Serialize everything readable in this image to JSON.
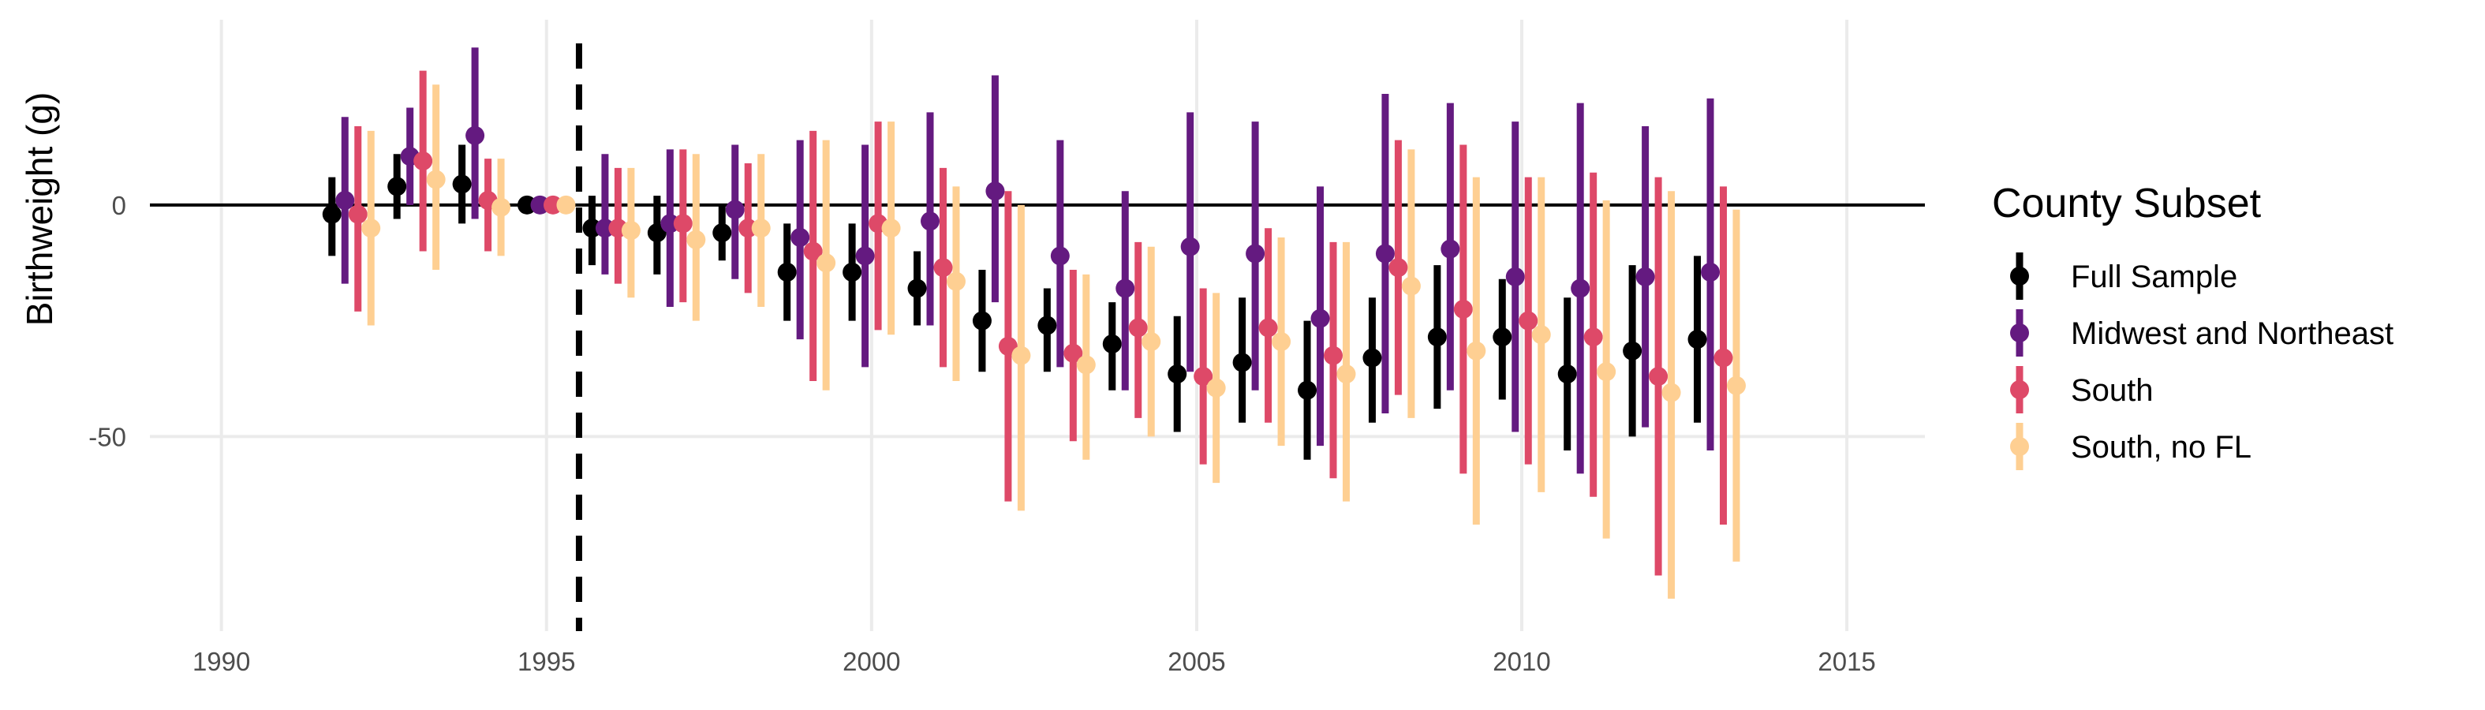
{
  "chart_data": {
    "type": "errorbar",
    "ylabel": "Birthweight (g)",
    "xlabel": "",
    "xlim": [
      1988.9,
      2016.2
    ],
    "ylim": [
      -92,
      40
    ],
    "x_ticks": [
      1990,
      1995,
      2000,
      2005,
      2010,
      2015
    ],
    "y_ticks": [
      0,
      -50
    ],
    "reference_line_y": 0,
    "event_line_x": 1995.5,
    "grid": true,
    "legend": {
      "title": "County Subset",
      "position": "right"
    },
    "years": [
      1992,
      1993,
      1994,
      1995,
      1996,
      1997,
      1998,
      1999,
      2000,
      2001,
      2002,
      2003,
      2004,
      2005,
      2006,
      2007,
      2008,
      2009,
      2010,
      2011,
      2012,
      2013
    ],
    "series": [
      {
        "name": "Full Sample",
        "color": "#000000",
        "offset": -0.3,
        "estimate": [
          -2,
          4,
          4.5,
          0,
          -5,
          -6,
          -6,
          -14.5,
          -14.5,
          -18,
          -25,
          -26,
          -30,
          -36.5,
          -34,
          -40,
          -33,
          -28.5,
          -28.5,
          -36.5,
          -31.5,
          -29
        ],
        "lower": [
          -11,
          -3,
          -4,
          0,
          -13,
          -15,
          -12,
          -25,
          -25,
          -26,
          -36,
          -36,
          -40,
          -49,
          -47,
          -55,
          -47,
          -44,
          -42,
          -53,
          -50,
          -47
        ],
        "upper": [
          6,
          11,
          13,
          0,
          2,
          2,
          0,
          -4,
          -4,
          -10,
          -14,
          -18,
          -21,
          -24,
          -20,
          -25,
          -20,
          -13,
          -16,
          -20,
          -13,
          -11
        ]
      },
      {
        "name": "Midwest and Northeast",
        "color": "#641a80",
        "offset": -0.1,
        "estimate": [
          1,
          10.5,
          15,
          0,
          -5,
          -4,
          -1,
          -7,
          -11,
          -3.5,
          3,
          -11,
          -18,
          -9,
          -10.5,
          -24.5,
          -10.5,
          -9.5,
          -15.5,
          -18,
          -15.5,
          -14.5
        ],
        "lower": [
          -17,
          0,
          -3,
          0,
          -15,
          -22,
          -16,
          -29,
          -35,
          -26,
          -21,
          -35,
          -40,
          -36,
          -40,
          -52,
          -45,
          -40,
          -49,
          -58,
          -48,
          -53
        ],
        "upper": [
          19,
          21,
          34,
          0,
          11,
          12,
          13,
          14,
          13,
          20,
          28,
          14,
          3,
          20,
          18,
          4,
          24,
          22,
          18,
          22,
          17,
          23
        ]
      },
      {
        "name": "South",
        "color": "#de4968",
        "offset": 0.1,
        "estimate": [
          -2,
          9.5,
          1,
          0,
          -5,
          -4,
          -5,
          -10,
          -4,
          -13.5,
          -30.5,
          -32,
          -26.5,
          -37,
          -26.5,
          -32.5,
          -13.5,
          -22.5,
          -25,
          -28.5,
          -37,
          -33
        ],
        "lower": [
          -23,
          -10,
          -10,
          0,
          -17,
          -21,
          -19,
          -38,
          -27,
          -35,
          -64,
          -51,
          -46,
          -56,
          -47,
          -59,
          -41,
          -58,
          -56,
          -63,
          -80,
          -69
        ],
        "upper": [
          17,
          29,
          10,
          0,
          8,
          12,
          9,
          16,
          18,
          8,
          3,
          -14,
          -8,
          -18,
          -5,
          -8,
          14,
          13,
          6,
          7,
          6,
          4
        ]
      },
      {
        "name": "South, no FL",
        "color": "#fecf92",
        "offset": 0.3,
        "estimate": [
          -5,
          5.5,
          -0.5,
          0,
          -5.5,
          -7.5,
          -5,
          -12.5,
          -5,
          -16.5,
          -32.5,
          -34.5,
          -29.5,
          -39.5,
          -29.5,
          -36.5,
          -17.5,
          -31.5,
          -28,
          -36,
          -40.5,
          -39
        ],
        "lower": [
          -26,
          -14,
          -11,
          0,
          -20,
          -25,
          -22,
          -40,
          -28,
          -38,
          -66,
          -55,
          -50,
          -60,
          -52,
          -64,
          -46,
          -69,
          -62,
          -72,
          -85,
          -77
        ],
        "upper": [
          16,
          26,
          10,
          0,
          8,
          11,
          11,
          14,
          18,
          4,
          0,
          -15,
          -9,
          -19,
          -7,
          -8,
          12,
          6,
          6,
          1,
          3,
          -1
        ]
      }
    ]
  }
}
